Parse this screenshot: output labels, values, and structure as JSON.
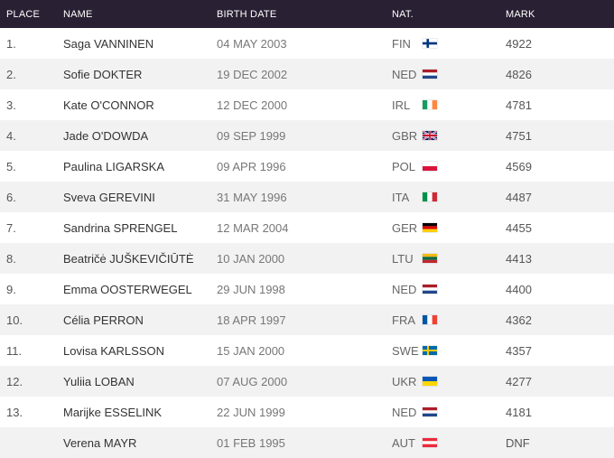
{
  "headers": {
    "place": "PLACE",
    "name": "NAME",
    "birth_date": "BIRTH DATE",
    "nat": "NAT.",
    "mark": "MARK"
  },
  "rows": [
    {
      "place": "1.",
      "name": "Saga VANNINEN",
      "birth_date": "04 MAY 2003",
      "nat": "FIN",
      "flag": "flag-fin-icon",
      "mark": "4922"
    },
    {
      "place": "2.",
      "name": "Sofie DOKTER",
      "birth_date": "19 DEC 2002",
      "nat": "NED",
      "flag": "flag-ned-icon",
      "mark": "4826"
    },
    {
      "place": "3.",
      "name": "Kate O'CONNOR",
      "birth_date": "12 DEC 2000",
      "nat": "IRL",
      "flag": "flag-irl-icon",
      "mark": "4781"
    },
    {
      "place": "4.",
      "name": "Jade O'DOWDA",
      "birth_date": "09 SEP 1999",
      "nat": "GBR",
      "flag": "flag-gbr-icon",
      "mark": "4751"
    },
    {
      "place": "5.",
      "name": "Paulina LIGARSKA",
      "birth_date": "09 APR 1996",
      "nat": "POL",
      "flag": "flag-pol-icon",
      "mark": "4569"
    },
    {
      "place": "6.",
      "name": "Sveva GEREVINI",
      "birth_date": "31 MAY 1996",
      "nat": "ITA",
      "flag": "flag-ita-icon",
      "mark": "4487"
    },
    {
      "place": "7.",
      "name": "Sandrina SPRENGEL",
      "birth_date": "12 MAR 2004",
      "nat": "GER",
      "flag": "flag-ger-icon",
      "mark": "4455"
    },
    {
      "place": "8.",
      "name": "Beatričė JUŠKEVIČIŪTĖ",
      "birth_date": "10 JAN 2000",
      "nat": "LTU",
      "flag": "flag-ltu-icon",
      "mark": "4413"
    },
    {
      "place": "9.",
      "name": "Emma OOSTERWEGEL",
      "birth_date": "29 JUN 1998",
      "nat": "NED",
      "flag": "flag-ned-icon",
      "mark": "4400"
    },
    {
      "place": "10.",
      "name": "Célia PERRON",
      "birth_date": "18 APR 1997",
      "nat": "FRA",
      "flag": "flag-fra-icon",
      "mark": "4362"
    },
    {
      "place": "11.",
      "name": "Lovisa KARLSSON",
      "birth_date": "15 JAN 2000",
      "nat": "SWE",
      "flag": "flag-swe-icon",
      "mark": "4357"
    },
    {
      "place": "12.",
      "name": "Yuliia LOBAN",
      "birth_date": "07 AUG 2000",
      "nat": "UKR",
      "flag": "flag-ukr-icon",
      "mark": "4277"
    },
    {
      "place": "13.",
      "name": "Marijke ESSELINK",
      "birth_date": "22 JUN 1999",
      "nat": "NED",
      "flag": "flag-ned-icon",
      "mark": "4181"
    },
    {
      "place": "",
      "name": "Verena MAYR",
      "birth_date": "01 FEB 1995",
      "nat": "AUT",
      "flag": "flag-aut-icon",
      "mark": "DNF"
    }
  ],
  "colors": {
    "header_bg": "#2a2033",
    "row_alt_bg": "#f2f2f2"
  }
}
